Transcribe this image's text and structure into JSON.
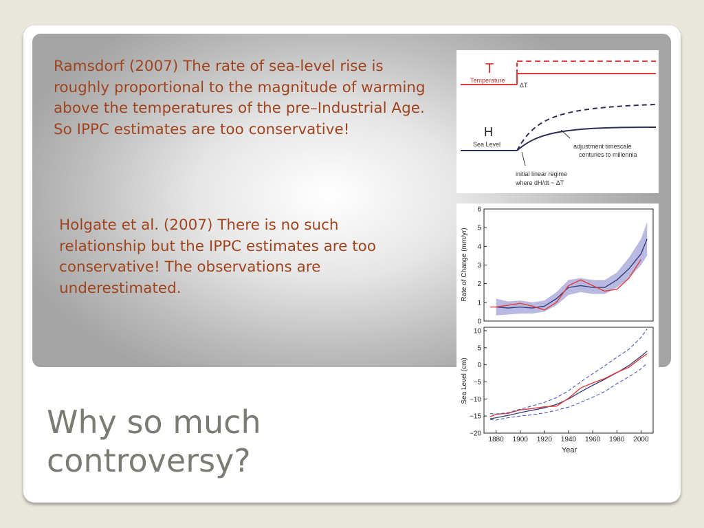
{
  "slide": {
    "title": "Why so much controversy?",
    "paragraphs": {
      "ramsdorf": "Ramsdorf (2007) The rate of sea-level rise is roughly proportional to the magnitude of warming above the temperatures of the pre–Industrial Age. So IPPC estimates are too conservative!",
      "holgate": "Holgate et al. (2007) There is no such relationship but the IPPC estimates are too conservative! The observations are underestimated."
    }
  },
  "colors": {
    "body_text": "#a0441e",
    "title_text": "#7b7b73",
    "red": "#e23a3a",
    "blue": "#33407a",
    "band": "#b9b9e2",
    "dashed_blue": "#4a56c0"
  },
  "schematic": {
    "temp_symbol": "T",
    "temp_label": "Temperature",
    "delta_t": "ΔT",
    "sea_symbol": "H",
    "sea_label": "Sea Level",
    "annotation_adjust_1": "adjustment timescale",
    "annotation_adjust_2": "centuries to millennia",
    "annotation_initial_1": "initial linear regime",
    "annotation_initial_2": "where dH/dt ~ ΔT"
  },
  "chart_data": [
    {
      "type": "line",
      "ylabel": "Rate of Change (mm/yr)",
      "xlabel": "",
      "xlim": [
        1870,
        2010
      ],
      "ylim": [
        0,
        6
      ],
      "yticks": [
        0,
        1,
        2,
        3,
        4,
        5,
        6
      ],
      "series": [
        {
          "x": [
            1880,
            1890,
            1900,
            1910,
            1920,
            1930,
            1940,
            1950,
            1960,
            1970,
            1980,
            1990,
            2000,
            2005
          ],
          "values": [
            0.75,
            0.7,
            0.75,
            0.7,
            0.8,
            1.2,
            1.8,
            1.9,
            1.8,
            1.8,
            2.2,
            2.8,
            3.6,
            4.4
          ]
        },
        {
          "x": [
            1875,
            1880,
            1890,
            1900,
            1910,
            1920,
            1930,
            1940,
            1950,
            1960,
            1970,
            1980,
            1990,
            2000
          ],
          "values": [
            0.75,
            0.75,
            0.85,
            0.95,
            0.8,
            0.6,
            1.0,
            1.9,
            2.2,
            1.9,
            1.6,
            1.7,
            2.3,
            3.3
          ]
        }
      ],
      "band": {
        "x": [
          1880,
          1890,
          1900,
          1910,
          1920,
          1930,
          1940,
          1950,
          1960,
          1970,
          1980,
          1990,
          2000,
          2005
        ],
        "lower": [
          0.3,
          0.35,
          0.4,
          0.4,
          0.5,
          0.85,
          1.4,
          1.55,
          1.45,
          1.45,
          1.8,
          2.3,
          3.0,
          3.5
        ],
        "upper": [
          1.2,
          1.05,
          1.1,
          1.0,
          1.1,
          1.55,
          2.2,
          2.3,
          2.2,
          2.2,
          2.6,
          3.4,
          4.4,
          5.3
        ]
      }
    },
    {
      "type": "line",
      "ylabel": "Sea Level (cm)",
      "xlabel": "Year",
      "xlim": [
        1870,
        2010
      ],
      "ylim": [
        -20,
        11
      ],
      "xticks": [
        1880,
        1900,
        1920,
        1940,
        1960,
        1980,
        2000
      ],
      "yticks": [
        -20,
        -15,
        -10,
        -5,
        0,
        5,
        10
      ],
      "series": [
        {
          "x": [
            1875,
            1880,
            1890,
            1900,
            1910,
            1920,
            1930,
            1940,
            1950,
            1960,
            1970,
            1980,
            1990,
            2000,
            2005
          ],
          "values": [
            -15.8,
            -15.5,
            -14.8,
            -14.0,
            -13.3,
            -12.6,
            -11.6,
            -10.0,
            -7.9,
            -6.0,
            -4.2,
            -2.3,
            -0.2,
            2.5,
            4.0
          ]
        },
        {
          "x": [
            1875,
            1880,
            1890,
            1900,
            1910,
            1920,
            1930,
            1940,
            1950,
            1960,
            1970,
            1980,
            1990,
            2000,
            2005
          ],
          "values": [
            -15.2,
            -14.5,
            -14.2,
            -13.2,
            -12.8,
            -12.3,
            -12.1,
            -9.8,
            -6.8,
            -5.3,
            -4.0,
            -2.2,
            -0.7,
            2.0,
            3.2
          ]
        },
        {
          "x": [
            1875,
            1880,
            1890,
            1900,
            1910,
            1920,
            1930,
            1940,
            1950,
            1960,
            1970,
            1980,
            1990,
            2000,
            2005
          ],
          "values": [
            -14.3,
            -14.4,
            -14.0,
            -13.0,
            -12.0,
            -11.0,
            -9.6,
            -7.6,
            -5.0,
            -2.6,
            -0.3,
            2.2,
            4.6,
            8.0,
            10.5
          ]
        },
        {
          "x": [
            1875,
            1880,
            1890,
            1900,
            1910,
            1920,
            1930,
            1940,
            1950,
            1960,
            1970,
            1980,
            1990,
            2000,
            2005
          ],
          "values": [
            -16.0,
            -16.2,
            -15.5,
            -15.0,
            -14.6,
            -14.1,
            -13.3,
            -12.4,
            -11.0,
            -9.5,
            -7.8,
            -5.5,
            -3.5,
            -1.2,
            0.5
          ]
        }
      ]
    }
  ]
}
